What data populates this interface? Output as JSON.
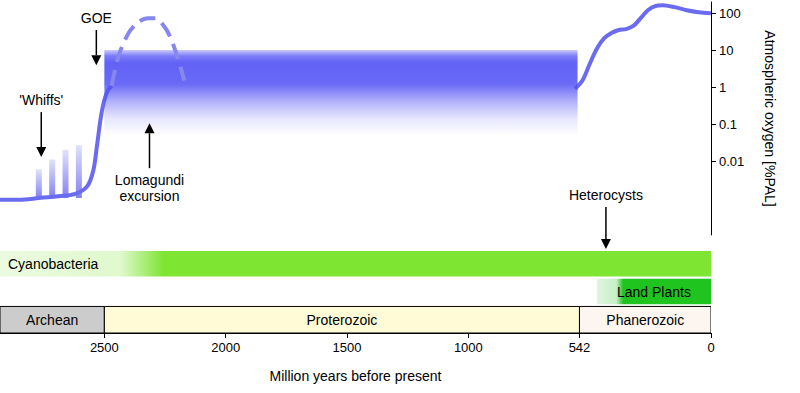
{
  "chart_data": {
    "type": "line",
    "x_label": "Million years before present",
    "y_label": "Atmospheric oxygen [%PAL]",
    "log": "y",
    "grid": false,
    "xlim": [
      2930,
      0
    ],
    "xticks": [
      2500,
      2000,
      1500,
      1000,
      542,
      0
    ],
    "ylim": [
      0.0001,
      200
    ],
    "yticks": [
      0.01,
      0.1,
      1,
      10,
      100
    ],
    "series": [
      {
        "color": "#6b6bef",
        "line_style": "solid",
        "x": [
          2930,
          2850,
          2770,
          2700,
          2620,
          2570,
          2545,
          2530,
          2515,
          2500,
          2485,
          2470
        ],
        "values": [
          0.0009,
          0.0009,
          0.001,
          0.0011,
          0.0013,
          0.0021,
          0.0057,
          0.027,
          0.145,
          0.45,
          0.83,
          1.07
        ]
      },
      {
        "color": "#6b6bef",
        "line_style": "solid",
        "x": [
          560,
          530,
          500,
          470,
          440,
          410,
          380,
          350,
          320,
          290,
          260,
          230,
          200,
          150,
          100,
          50,
          0
        ],
        "values": [
          0.9,
          1.5,
          4.2,
          11,
          21,
          29,
          35,
          37,
          45,
          73,
          120,
          155,
          164,
          145,
          120,
          106,
          100
        ]
      },
      {
        "color": "#8787ef",
        "line_style": "dashed",
        "x": [
          2470,
          2440,
          2400,
          2360,
          2320,
          2290,
          2260,
          2230,
          2200,
          2170
        ],
        "values": [
          1.1,
          7.3,
          29,
          57,
          73,
          73,
          50,
          24,
          6.9,
          1.5
        ]
      }
    ],
    "band": {
      "x": [
        2500,
        550
      ],
      "low": 0.05,
      "high": 10,
      "color": "#5050f5"
    },
    "whiffs": {
      "x": [
        2770,
        2715,
        2660,
        2605
      ],
      "low": [
        0.001,
        0.001,
        0.001,
        0.001
      ],
      "high": [
        0.006,
        0.011,
        0.02,
        0.027
      ],
      "color": "#6b6bef"
    },
    "bands": [
      {
        "label": "Cyanobacteria",
        "start": 2930,
        "end": 0,
        "color": "#7fe533"
      },
      {
        "label": "Land Plants",
        "start": 470,
        "end": 0,
        "color": "#1fc41f"
      }
    ],
    "eras": [
      {
        "label": "Archean",
        "start": 2930,
        "end": 2500,
        "color": "#cccccc"
      },
      {
        "label": "Proterozoic",
        "start": 2500,
        "end": 542,
        "color": "#fffbd6"
      },
      {
        "label": "Phanerozoic",
        "start": 542,
        "end": 0,
        "color": "#fdf6f0"
      }
    ],
    "annotations": [
      {
        "text": "'Whiffs'",
        "x": 2760,
        "y": 0.0128,
        "text_y": 0.27
      },
      {
        "text": "GOE",
        "x": 2533,
        "y": 3.9,
        "text_y": 45
      },
      {
        "text": "Lomagundi\nexcursion",
        "x": 2314,
        "y": 0.105,
        "text_y": 0.005
      },
      {
        "text": "Heterocysts",
        "x": 433,
        "band": "Cyanobacteria",
        "text_y": 0.00073
      }
    ]
  }
}
